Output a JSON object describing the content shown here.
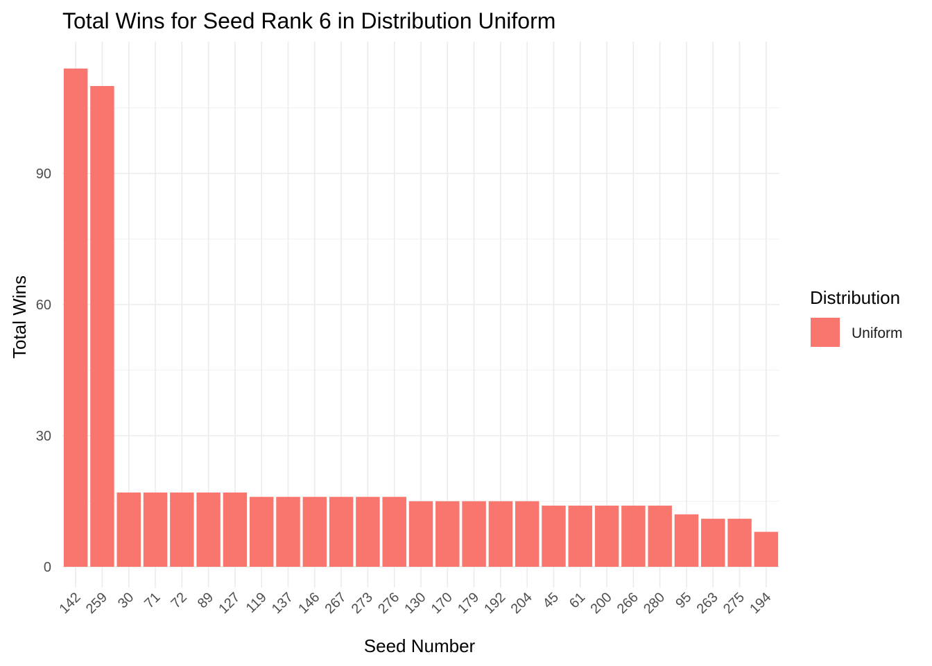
{
  "chart_data": {
    "type": "bar",
    "title": "Total Wins for Seed Rank 6 in Distribution Uniform",
    "xlabel": "Seed Number",
    "ylabel": "Total Wins",
    "categories": [
      "142",
      "259",
      "30",
      "71",
      "72",
      "89",
      "127",
      "119",
      "137",
      "146",
      "267",
      "273",
      "276",
      "130",
      "170",
      "179",
      "192",
      "204",
      "45",
      "61",
      "200",
      "266",
      "280",
      "95",
      "263",
      "275",
      "194"
    ],
    "series": [
      {
        "name": "Uniform",
        "values": [
          114,
          110,
          17,
          17,
          17,
          17,
          17,
          16,
          16,
          16,
          16,
          16,
          16,
          15,
          15,
          15,
          15,
          15,
          14,
          14,
          14,
          14,
          14,
          12,
          11,
          11,
          8
        ]
      }
    ],
    "ylim": [
      0,
      120
    ],
    "yticks": [
      0,
      30,
      60,
      90
    ],
    "grid": true,
    "legend": {
      "title": "Distribution",
      "position": "right"
    },
    "colors": {
      "Uniform": "#F8766D"
    }
  }
}
